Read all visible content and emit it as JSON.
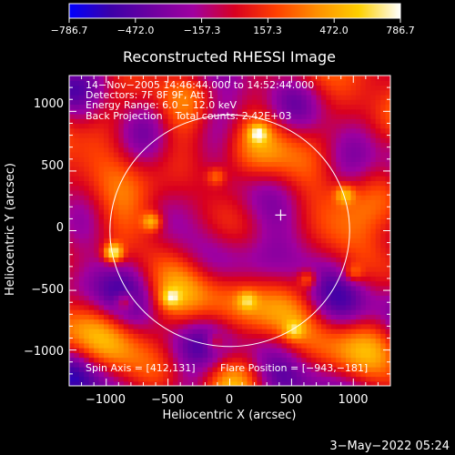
{
  "chart_data": {
    "type": "heatmap",
    "title": "Reconstructed RHESSI Image",
    "xlabel": "Heliocentric X (arcsec)",
    "ylabel": "Heliocentric Y (arcsec)",
    "xlim": [
      -1300,
      1300
    ],
    "ylim": [
      -1300,
      1300
    ],
    "xticks": [
      -1000,
      -500,
      0,
      500,
      1000
    ],
    "xtick_labels": [
      "−1000",
      "−500",
      "0",
      "500",
      "1000"
    ],
    "yticks": [
      -1000,
      -500,
      0,
      500,
      1000
    ],
    "ytick_labels": [
      "−1000",
      "−500",
      "0",
      "500",
      "1000"
    ],
    "colorbar": {
      "range": [
        -786.7,
        786.7
      ],
      "tick_labels": [
        "−786.7",
        "−472.0",
        "−157.3",
        "157.3",
        "472.0",
        "786.7"
      ],
      "colors": [
        "#0000ff",
        "#3c00a8",
        "#6e00a0",
        "#a000a0",
        "#d80020",
        "#ff4000",
        "#ff9000",
        "#ffd000",
        "#ffffff"
      ]
    },
    "annotations": [
      "14−Nov−2005 14:46:44.000 to 14:52:44.000",
      "Detectors: 7F 8F 9F, Att 1",
      "Energy Range: 6.0 − 12.0 keV",
      "Back Projection    Total counts: 2.42E+03"
    ],
    "spin_axis": "Spin Axis = [412,131]",
    "flare_position_text": "Flare Position = [−943,−181]",
    "solar_limb_radius": 970,
    "spin_axis_point": [
      412,
      131
    ],
    "flare_position": [
      -943,
      -181
    ],
    "bright_sources": [
      {
        "x": -943,
        "y": -181,
        "intensity": 786.7
      },
      {
        "x": -630,
        "y": 80,
        "intensity": 520
      },
      {
        "x": 230,
        "y": 820,
        "intensity": 470
      },
      {
        "x": 930,
        "y": 310,
        "intensity": 450
      },
      {
        "x": -850,
        "y": -590,
        "intensity": 420
      },
      {
        "x": 630,
        "y": -400,
        "intensity": 400
      },
      {
        "x": -480,
        "y": -560,
        "intensity": 380
      },
      {
        "x": 140,
        "y": -580,
        "intensity": 360
      },
      {
        "x": 520,
        "y": -830,
        "intensity": 340
      },
      {
        "x": -110,
        "y": 460,
        "intensity": 330
      },
      {
        "x": 1000,
        "y": -350,
        "intensity": 320
      },
      {
        "x": -120,
        "y": -930,
        "intensity": 300
      }
    ]
  },
  "timestamp": "3−May−2022 05:24"
}
